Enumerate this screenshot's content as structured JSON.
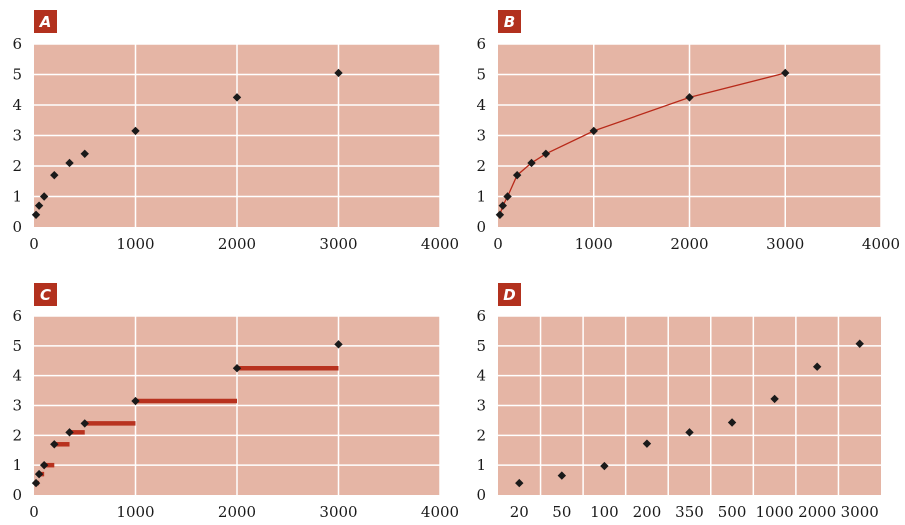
{
  "colors": {
    "plot_background": "#e5b5a5",
    "grid": "#ffffff",
    "badge": "#b2311e",
    "badge_text": "#ffffff",
    "marker": "#1a1a1a",
    "line": "#b82a1a",
    "step": "#b8321f"
  },
  "chart_data": [
    {
      "id": "A",
      "panel_label": "A",
      "type": "scatter",
      "x_scale": "linear",
      "xlim": [
        0,
        4000
      ],
      "ylim": [
        0,
        6
      ],
      "x_ticks": [
        0,
        1000,
        2000,
        3000,
        4000
      ],
      "x_tick_labels": [
        "0",
        "1000",
        "2000",
        "3000",
        "4000"
      ],
      "y_ticks": [
        0,
        1,
        2,
        3,
        4,
        5,
        6
      ],
      "y_tick_labels": [
        "0",
        "1",
        "2",
        "3",
        "4",
        "5",
        "6"
      ],
      "grid": true,
      "connect": "none",
      "x": [
        20,
        50,
        100,
        200,
        350,
        500,
        1000,
        2000,
        3000
      ],
      "y": [
        0.4,
        0.7,
        1.0,
        1.7,
        2.1,
        2.4,
        3.15,
        4.25,
        5.05
      ]
    },
    {
      "id": "B",
      "panel_label": "B",
      "type": "line",
      "x_scale": "linear",
      "xlim": [
        0,
        4000
      ],
      "ylim": [
        0,
        6
      ],
      "x_ticks": [
        0,
        1000,
        2000,
        3000,
        4000
      ],
      "x_tick_labels": [
        "0",
        "1000",
        "2000",
        "3000",
        "4000"
      ],
      "y_ticks": [
        0,
        1,
        2,
        3,
        4,
        5,
        6
      ],
      "y_tick_labels": [
        "0",
        "1",
        "2",
        "3",
        "4",
        "5",
        "6"
      ],
      "grid": true,
      "connect": "line",
      "x": [
        20,
        50,
        100,
        200,
        350,
        500,
        1000,
        2000,
        3000
      ],
      "y": [
        0.4,
        0.7,
        1.0,
        1.7,
        2.1,
        2.4,
        3.15,
        4.25,
        5.05
      ]
    },
    {
      "id": "C",
      "panel_label": "C",
      "type": "scatter",
      "x_scale": "linear",
      "xlim": [
        0,
        4000
      ],
      "ylim": [
        0,
        6
      ],
      "x_ticks": [
        0,
        1000,
        2000,
        3000,
        4000
      ],
      "x_tick_labels": [
        "0",
        "1000",
        "2000",
        "3000",
        "4000"
      ],
      "y_ticks": [
        0,
        1,
        2,
        3,
        4,
        5,
        6
      ],
      "y_tick_labels": [
        "0",
        "1",
        "2",
        "3",
        "4",
        "5",
        "6"
      ],
      "grid": true,
      "connect": "step",
      "x": [
        20,
        50,
        100,
        200,
        350,
        500,
        1000,
        2000,
        3000
      ],
      "y": [
        0.4,
        0.7,
        1.0,
        1.7,
        2.1,
        2.4,
        3.15,
        4.25,
        5.05
      ]
    },
    {
      "id": "D",
      "panel_label": "D",
      "type": "scatter",
      "x_scale": "category",
      "ylim": [
        0,
        6
      ],
      "categories": [
        "20",
        "50",
        "100",
        "200",
        "350",
        "500",
        "1000",
        "2000",
        "3000"
      ],
      "y_ticks": [
        0,
        1,
        2,
        3,
        4,
        5,
        6
      ],
      "y_tick_labels": [
        "0",
        "1",
        "2",
        "3",
        "4",
        "5",
        "6"
      ],
      "grid": true,
      "connect": "none",
      "y": [
        0.4,
        0.65,
        0.97,
        1.72,
        2.1,
        2.43,
        3.22,
        4.3,
        5.07
      ]
    }
  ]
}
